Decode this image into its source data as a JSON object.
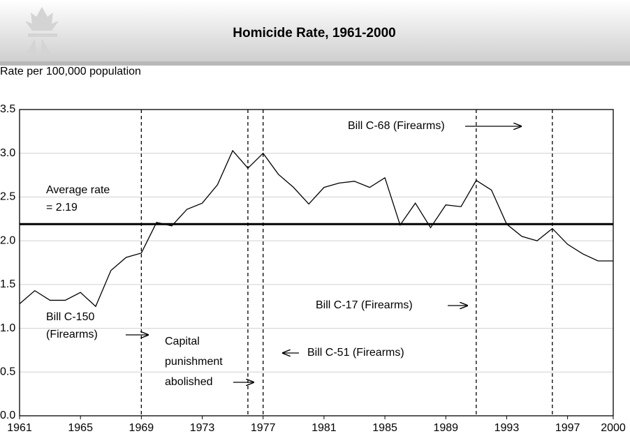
{
  "chart_data": {
    "type": "line",
    "title": "Homicide Rate, 1961-2000",
    "ylabel": "Rate per 100,000 population",
    "x": [
      1961,
      1962,
      1963,
      1964,
      1965,
      1966,
      1967,
      1968,
      1969,
      1970,
      1971,
      1972,
      1973,
      1974,
      1975,
      1976,
      1977,
      1978,
      1979,
      1980,
      1981,
      1982,
      1983,
      1984,
      1985,
      1986,
      1987,
      1988,
      1989,
      1990,
      1991,
      1992,
      1993,
      1994,
      1995,
      1996,
      1997,
      1998,
      1999,
      2000
    ],
    "series": [
      {
        "color": "#000000",
        "values": [
          1.28,
          1.43,
          1.32,
          1.32,
          1.41,
          1.25,
          1.66,
          1.81,
          1.86,
          2.21,
          2.17,
          2.36,
          2.43,
          2.64,
          3.03,
          2.83,
          3.0,
          2.76,
          2.61,
          2.42,
          2.61,
          2.66,
          2.68,
          2.61,
          2.72,
          2.18,
          2.43,
          2.15,
          2.41,
          2.39,
          2.69,
          2.58,
          2.19,
          2.05,
          2.0,
          2.14,
          1.96,
          1.85,
          1.77,
          1.77
        ]
      }
    ],
    "xlim": [
      1961,
      2000
    ],
    "xticks": [
      1961,
      1965,
      1969,
      1973,
      1977,
      1981,
      1985,
      1989,
      1993,
      1997,
      2000
    ],
    "ylim": [
      0,
      3.5
    ],
    "yticks": [
      {
        "value": 0,
        "label": "0.0"
      },
      {
        "value": 0.5,
        "label": "0.5"
      },
      {
        "value": 1,
        "label": "1.0"
      },
      {
        "value": 1.5,
        "label": "1.5"
      },
      {
        "value": 2,
        "label": "2.0"
      },
      {
        "value": 2.5,
        "label": "2.5"
      },
      {
        "value": 3,
        "label": "3.0"
      },
      {
        "value": 3.5,
        "label": "3.5"
      }
    ],
    "grid": true,
    "average": {
      "value": 2.19,
      "label": [
        "Average rate",
        "= 2.19"
      ]
    },
    "events": [
      {
        "x": 1969,
        "label": [
          "Bill C-150",
          "(Firearms)"
        ]
      },
      {
        "x": 1976,
        "label": [
          "Capital",
          "punishment",
          "abolished"
        ]
      },
      {
        "x": 1977,
        "label": [
          "Bill C-51 (Firearms)"
        ]
      },
      {
        "x": 1991,
        "label": [
          "Bill C-17 (Firearms)"
        ]
      },
      {
        "x": 1996,
        "label": [
          "Bill C-68 (Firearms)"
        ]
      }
    ]
  }
}
